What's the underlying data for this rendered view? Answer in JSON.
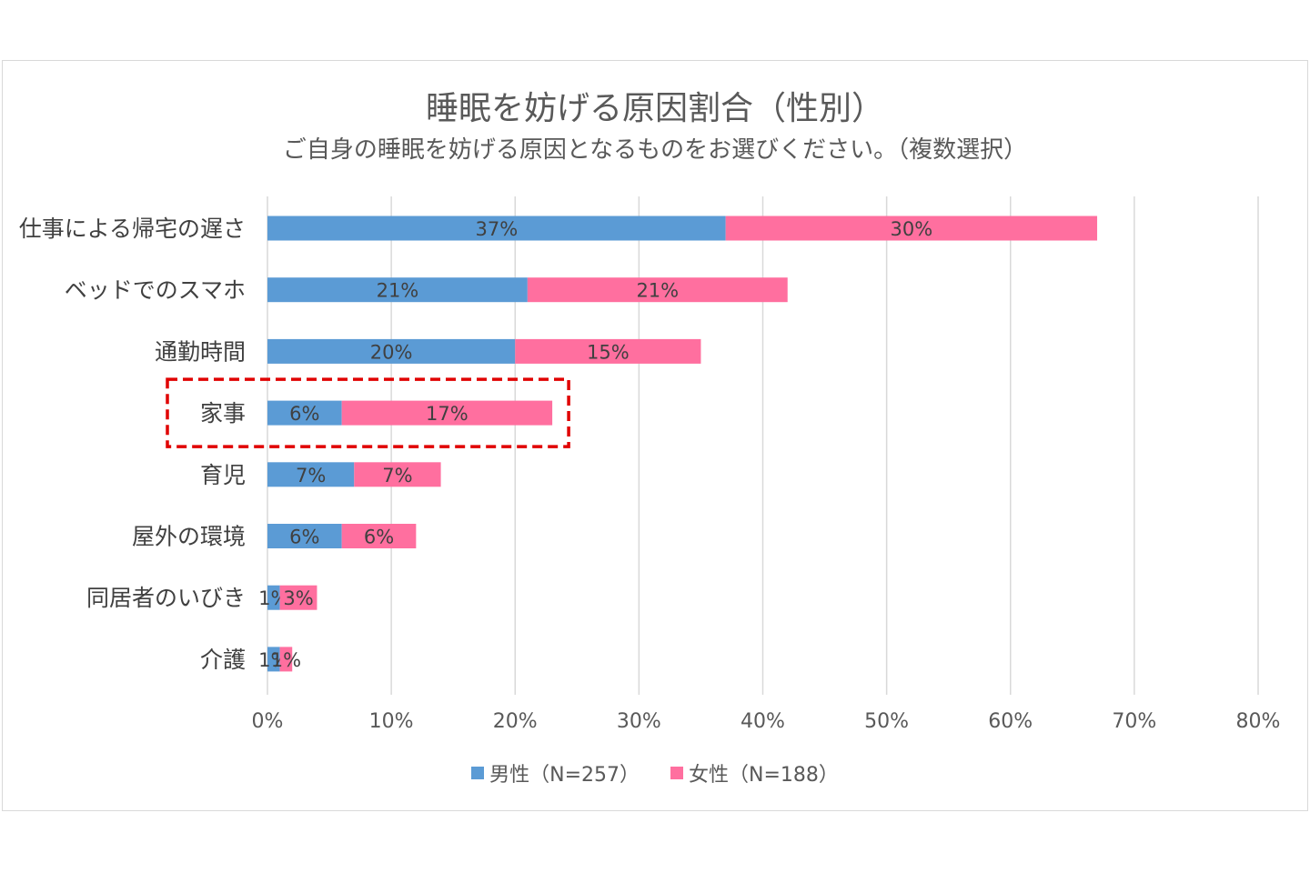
{
  "chart_data": {
    "type": "bar",
    "orientation": "horizontal",
    "stacked": true,
    "title": "睡眠を妨げる原因割合（性別）",
    "subtitle": "ご自身の睡眠を妨げる原因となるものをお選びください。（複数選択）",
    "categories": [
      "仕事による帰宅の遅さ",
      "ベッドでのスマホ",
      "通勤時間",
      "家事",
      "育児",
      "屋外の環境",
      "同居者のいびき",
      "介護"
    ],
    "series": [
      {
        "name": "男性（N=257）",
        "color": "#5b9bd5",
        "values": [
          37,
          21,
          20,
          6,
          7,
          6,
          1,
          1
        ],
        "labels": [
          "37%",
          "21%",
          "20%",
          "6%",
          "7%",
          "6%",
          "1%",
          "1%"
        ]
      },
      {
        "name": "女性（N=188）",
        "color": "#ff6f9f",
        "values": [
          30,
          21,
          15,
          17,
          7,
          6,
          3,
          1
        ],
        "labels": [
          "30%",
          "21%",
          "15%",
          "17%",
          "7%",
          "6%",
          "3%",
          "1%"
        ]
      }
    ],
    "xlim": [
      0,
      80
    ],
    "x_ticks": [
      "0%",
      "10%",
      "20%",
      "30%",
      "40%",
      "50%",
      "60%",
      "70%",
      "80%"
    ],
    "grid": true,
    "legend_position": "bottom",
    "highlighted_category": "家事",
    "highlight_color": "#e00000"
  }
}
